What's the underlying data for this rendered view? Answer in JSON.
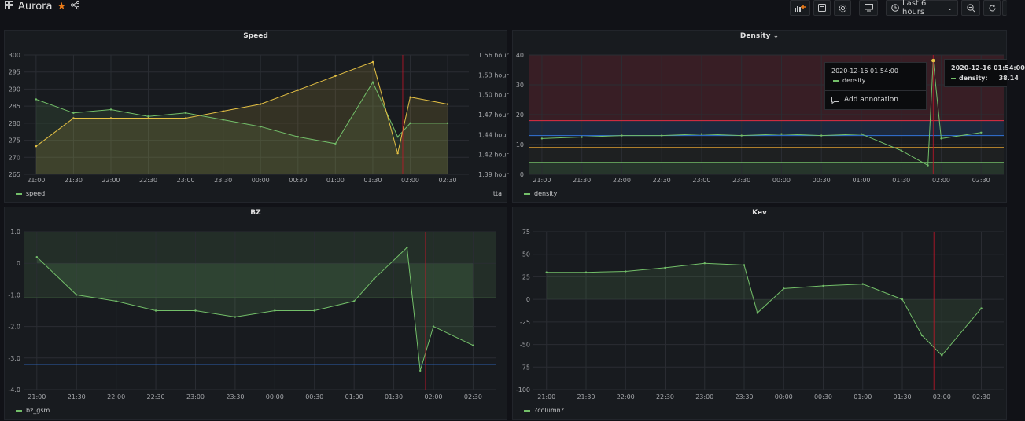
{
  "dashboard": {
    "title": "Aurora"
  },
  "toolbar": {
    "time_range": "Last 6 hours"
  },
  "colors": {
    "green": "#73bf69",
    "yellow": "#e5c144",
    "red": "#e02f44",
    "blue": "#3274d9"
  },
  "x_ticks": [
    "21:00",
    "21:30",
    "22:00",
    "22:30",
    "23:00",
    "23:30",
    "00:00",
    "00:30",
    "01:00",
    "01:30",
    "02:00",
    "02:30"
  ],
  "panels": {
    "speed": {
      "title": "Speed",
      "legend_left": "speed",
      "legend_right": "tta",
      "y_left": [
        "300",
        "295",
        "290",
        "285",
        "280",
        "275",
        "270",
        "265"
      ],
      "y_right": [
        "1.56 hour",
        "1.53 hour",
        "1.50 hour",
        "1.47 hour",
        "1.44 hour",
        "1.42 hour",
        "1.39 hour"
      ]
    },
    "density": {
      "title": "Density",
      "legend": "density",
      "y_ticks": [
        "40",
        "30",
        "20",
        "10",
        "0"
      ]
    },
    "bz": {
      "title": "BZ",
      "legend": "bz_gsm",
      "y_ticks": [
        "1.0",
        "0",
        "-1.0",
        "-2.0",
        "-3.0",
        "-4.0"
      ]
    },
    "kev": {
      "title": "Kev",
      "legend": "?column?",
      "y_ticks": [
        "75",
        "50",
        "25",
        "0",
        "-25",
        "-50",
        "-75",
        "-100"
      ]
    }
  },
  "tooltip": {
    "time": "2020-12-16 01:54:00",
    "series": "density",
    "value_label": "density:",
    "value": "38.14",
    "add_annotation": "Add annotation"
  },
  "chart_data": [
    {
      "type": "line",
      "title": "Speed",
      "x": [
        "21:00",
        "21:30",
        "22:00",
        "22:30",
        "23:00",
        "23:30",
        "00:00",
        "00:30",
        "01:00",
        "01:30",
        "01:50",
        "02:00",
        "02:30"
      ],
      "series": [
        {
          "name": "speed",
          "values": [
            287,
            283,
            284,
            282,
            283,
            281,
            279,
            276,
            274,
            292,
            276,
            280,
            280
          ]
        },
        {
          "name": "tta",
          "values": [
            1.43,
            1.47,
            1.47,
            1.47,
            1.47,
            1.48,
            1.49,
            1.51,
            1.53,
            1.55,
            1.42,
            1.5,
            1.49
          ]
        }
      ],
      "ylim": [
        265,
        300
      ],
      "y2lim": [
        1.39,
        1.56
      ]
    },
    {
      "type": "line",
      "title": "Density",
      "x": [
        "21:00",
        "21:30",
        "22:00",
        "22:30",
        "23:00",
        "23:30",
        "00:00",
        "00:30",
        "01:00",
        "01:30",
        "01:50",
        "01:54",
        "02:00",
        "02:30"
      ],
      "series": [
        {
          "name": "density",
          "values": [
            12,
            12.5,
            13,
            13,
            13.5,
            13,
            13.5,
            13,
            13.5,
            8,
            3,
            38.14,
            12,
            14
          ]
        }
      ],
      "ylim": [
        0,
        40
      ]
    },
    {
      "type": "area",
      "title": "BZ",
      "x": [
        "21:00",
        "21:30",
        "22:00",
        "22:30",
        "23:00",
        "23:30",
        "00:00",
        "00:30",
        "01:00",
        "01:15",
        "01:40",
        "01:50",
        "02:00",
        "02:30"
      ],
      "series": [
        {
          "name": "bz_gsm",
          "values": [
            0.2,
            -1.0,
            -1.2,
            -1.5,
            -1.5,
            -1.7,
            -1.5,
            -1.5,
            -1.2,
            -0.5,
            0.5,
            -3.4,
            -2.0,
            -2.6
          ]
        }
      ],
      "ylim": [
        -4,
        1
      ]
    },
    {
      "type": "area",
      "title": "Kev",
      "x": [
        "21:00",
        "21:30",
        "22:00",
        "22:30",
        "23:00",
        "23:30",
        "23:40",
        "00:00",
        "00:30",
        "01:00",
        "01:30",
        "01:45",
        "02:00",
        "02:30"
      ],
      "series": [
        {
          "name": "?column?",
          "values": [
            30,
            30,
            31,
            35,
            40,
            38,
            -15,
            12,
            15,
            17,
            0,
            -40,
            -62,
            -10
          ]
        }
      ],
      "ylim": [
        -100,
        75
      ]
    }
  ]
}
